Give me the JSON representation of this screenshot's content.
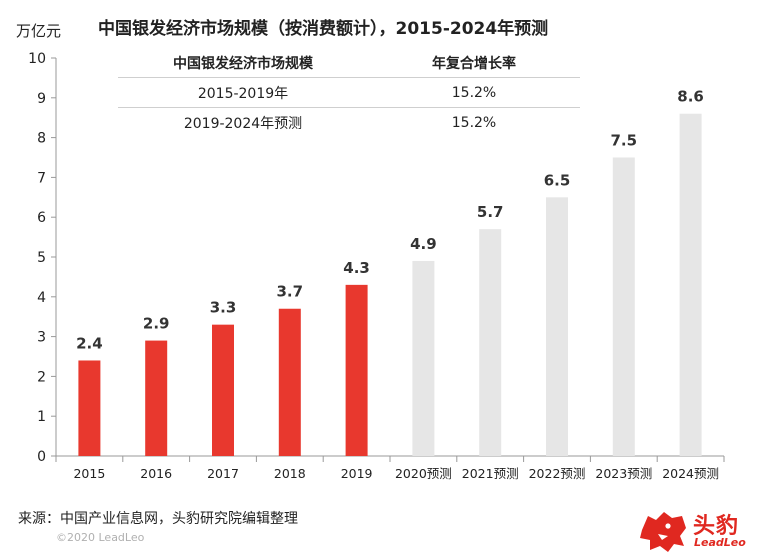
{
  "chart_data": {
    "type": "bar",
    "title": "中国银发经济市场规模（按消费额计），2015-2024年预测",
    "ylabel": "万亿元",
    "xlabel": "",
    "ylim": [
      0,
      10
    ],
    "yticks": [
      "0",
      "1",
      "2",
      "3",
      "4",
      "5",
      "6",
      "7",
      "8",
      "9",
      "10"
    ],
    "categories": [
      "2015",
      "2016",
      "2017",
      "2018",
      "2019",
      "2020预测",
      "2021预测",
      "2022预测",
      "2023预测",
      "2024预测"
    ],
    "values": [
      2.4,
      2.9,
      3.3,
      3.7,
      4.3,
      4.9,
      5.7,
      6.5,
      7.5,
      8.6
    ],
    "value_labels": [
      "2.4",
      "2.9",
      "3.3",
      "3.7",
      "4.3",
      "4.9",
      "5.7",
      "6.5",
      "7.5",
      "8.6"
    ],
    "bar_kinds": [
      "actual",
      "actual",
      "actual",
      "actual",
      "actual",
      "forecast",
      "forecast",
      "forecast",
      "forecast",
      "forecast"
    ],
    "colors": {
      "actual": "#e8382e",
      "forecast": "#e6e6e6"
    },
    "grid": false
  },
  "table": {
    "headers": [
      "中国银发经济市场规模",
      "年复合增长率"
    ],
    "rows": [
      [
        "2015-2019年",
        "15.2%"
      ],
      [
        "2019-2024年预测",
        "15.2%"
      ]
    ]
  },
  "footer": {
    "source": "来源：中国产业信息网，头豹研究院编辑整理",
    "copyright": "©2020 LeadLeo"
  },
  "logo": {
    "name_cn": "头豹",
    "name_en": "LeadLeo",
    "icon": "leopard-head-icon"
  }
}
